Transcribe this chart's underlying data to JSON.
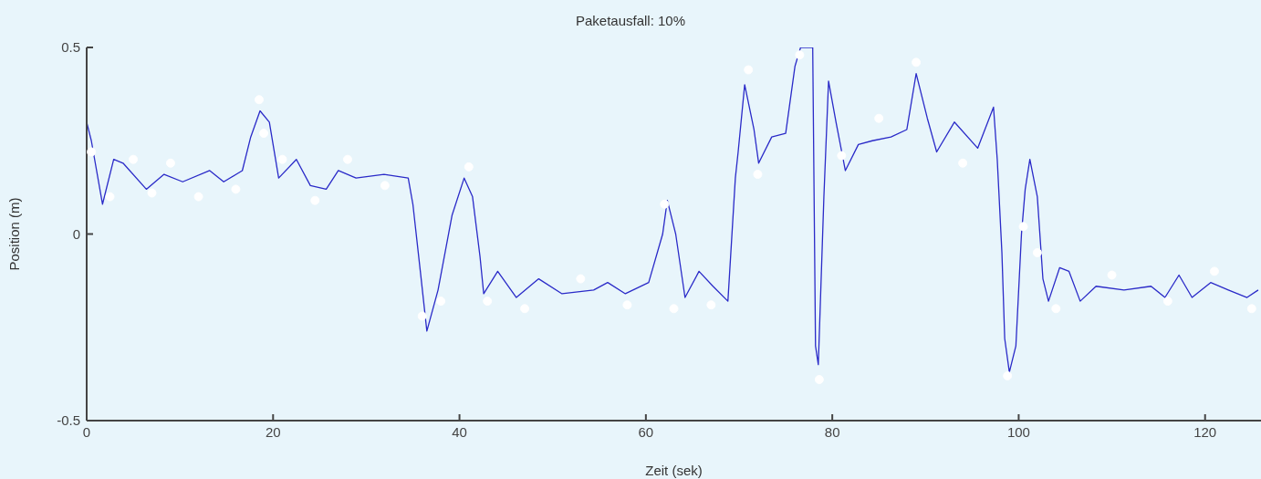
{
  "chart_data": {
    "type": "line",
    "title": "Paketausfall: 10%",
    "xlabel": "Zeit (sek)",
    "ylabel": "Position (m)",
    "xlim": [
      0,
      126
    ],
    "xticks": [
      0,
      20,
      40,
      60,
      80,
      100,
      120
    ],
    "ylim": [
      -0.5,
      0.5
    ],
    "yticks": [
      -0.5,
      0,
      0.5
    ],
    "grid": false,
    "series": [
      {
        "color": "#2a2ac8",
        "marker": "none",
        "line_style": "solid",
        "x": [
          0,
          0.5,
          1.7,
          2.9,
          3.9,
          6.4,
          8.3,
          10.3,
          13.2,
          14.7,
          16.7,
          17.6,
          18.6,
          19.6,
          20.6,
          22.5,
          24,
          25.7,
          27,
          28.9,
          31.9,
          34.5,
          35,
          35.8,
          36.5,
          37.7,
          39.2,
          40.5,
          41.4,
          42.2,
          42.6,
          44.1,
          46.1,
          48.5,
          51,
          54.4,
          55.9,
          57.8,
          60.3,
          61.8,
          62.3,
          63.2,
          64.2,
          65.7,
          67.2,
          68.8,
          69.6,
          69.9,
          70.6,
          71.6,
          72.1,
          73.5,
          75,
          76,
          76.6,
          77.9,
          78.2,
          78.5,
          79.1,
          79.6,
          80.4,
          81.4,
          82.8,
          84.3,
          86.3,
          88,
          89,
          90.2,
          91.2,
          93.1,
          95.6,
          97.3,
          97.7,
          98.2,
          98.5,
          99,
          99.7,
          100.3,
          100.7,
          101.2,
          102,
          102.6,
          103.2,
          104.4,
          105.4,
          106.6,
          108.3,
          111.3,
          114.2,
          115.7,
          117.2,
          118.6,
          120.6,
          122.5,
          124.5,
          125.7
        ],
        "values": [
          0.3,
          0.25,
          0.08,
          0.2,
          0.19,
          0.12,
          0.16,
          0.14,
          0.17,
          0.14,
          0.17,
          0.26,
          0.33,
          0.3,
          0.15,
          0.2,
          0.13,
          0.12,
          0.17,
          0.15,
          0.16,
          0.15,
          0.08,
          -0.1,
          -0.26,
          -0.15,
          0.05,
          0.15,
          0.1,
          -0.06,
          -0.16,
          -0.1,
          -0.17,
          -0.12,
          -0.16,
          -0.15,
          -0.13,
          -0.16,
          -0.13,
          0,
          0.09,
          0,
          -0.17,
          -0.1,
          -0.14,
          -0.18,
          0.15,
          0.22,
          0.4,
          0.28,
          0.19,
          0.26,
          0.27,
          0.45,
          0.5,
          0.5,
          -0.3,
          -0.35,
          0.1,
          0.41,
          0.3,
          0.17,
          0.24,
          0.25,
          0.26,
          0.28,
          0.43,
          0.31,
          0.22,
          0.3,
          0.23,
          0.34,
          0.2,
          -0.05,
          -0.28,
          -0.37,
          -0.3,
          0,
          0.12,
          0.2,
          0.1,
          -0.12,
          -0.18,
          -0.09,
          -0.1,
          -0.18,
          -0.14,
          -0.15,
          -0.14,
          -0.17,
          -0.11,
          -0.17,
          -0.13,
          -0.15,
          -0.17,
          -0.15
        ]
      },
      {
        "type": "scatter",
        "color": "#ffffff",
        "marker": "circle",
        "x": [
          0.5,
          2.5,
          5,
          7,
          9,
          12,
          16,
          18.5,
          19,
          21,
          24.5,
          28,
          32,
          36,
          38,
          41,
          43,
          47,
          53,
          58,
          62,
          63,
          67,
          71,
          72,
          76.5,
          78.6,
          81,
          85,
          89,
          94,
          98.8,
          100.5,
          102,
          104,
          110,
          116,
          121,
          125
        ],
        "values": [
          0.22,
          0.1,
          0.2,
          0.11,
          0.19,
          0.1,
          0.12,
          0.36,
          0.27,
          0.2,
          0.09,
          0.2,
          0.13,
          -0.22,
          -0.18,
          0.18,
          -0.18,
          -0.2,
          -0.12,
          -0.19,
          0.08,
          -0.2,
          -0.19,
          0.44,
          0.16,
          0.48,
          -0.39,
          0.21,
          0.31,
          0.46,
          0.19,
          -0.38,
          0.02,
          -0.05,
          -0.2,
          -0.11,
          -0.18,
          -0.1,
          -0.2
        ]
      }
    ]
  }
}
